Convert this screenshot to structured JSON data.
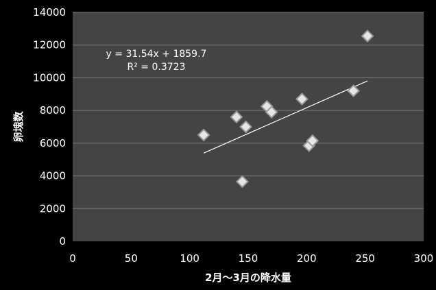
{
  "chart_data": {
    "type": "scatter",
    "title": "",
    "xlabel": "2月～3月の降水量",
    "ylabel": "卵塊数",
    "xlim": [
      0,
      300
    ],
    "ylim": [
      0,
      14000
    ],
    "x_ticks": [
      0,
      50,
      100,
      150,
      200,
      250,
      300
    ],
    "y_ticks": [
      0,
      2000,
      4000,
      6000,
      8000,
      10000,
      12000,
      14000
    ],
    "x_tick_labels": [
      "0",
      "50",
      "100",
      "150",
      "200",
      "250",
      "300"
    ],
    "y_tick_labels": [
      "0",
      "2000",
      "4000",
      "6000",
      "8000",
      "10000",
      "12000",
      "14000"
    ],
    "grid": true,
    "points": [
      {
        "x": 112,
        "y": 6500
      },
      {
        "x": 140,
        "y": 7600
      },
      {
        "x": 145,
        "y": 3650
      },
      {
        "x": 148,
        "y": 7000
      },
      {
        "x": 166,
        "y": 8250
      },
      {
        "x": 170,
        "y": 7900
      },
      {
        "x": 196,
        "y": 8700
      },
      {
        "x": 202,
        "y": 5850
      },
      {
        "x": 205,
        "y": 6150
      },
      {
        "x": 240,
        "y": 9200
      },
      {
        "x": 252,
        "y": 12550
      }
    ],
    "trendline": {
      "x_start": 112,
      "x_end": 252,
      "slope": 31.54,
      "intercept": 1859.7
    },
    "annotations": [
      "y = 31.54x + 1859.7",
      "R² = 0.3723"
    ],
    "colors": {
      "background": "#000000",
      "plot_area": "#444444",
      "gridline": "#7a7a7a",
      "marker_fill": "#e6e6e6",
      "marker_stroke": "#9a9a9a",
      "trendline": "#ffffff",
      "text": "#ffffff"
    }
  }
}
